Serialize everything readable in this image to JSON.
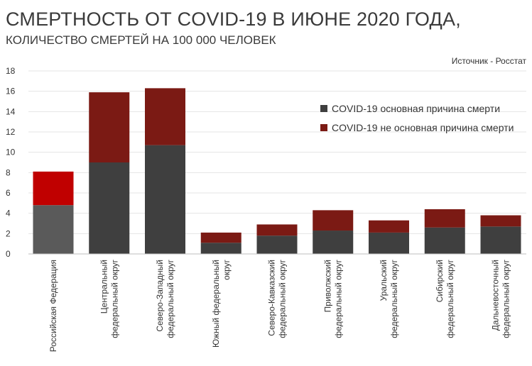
{
  "header": {
    "title": "СМЕРТНОСТЬ ОТ COVID-19 В ИЮНЕ 2020 ГОДА,",
    "subtitle": "КОЛИЧЕСТВО СМЕРТЕЙ НА 100 000 ЧЕЛОВЕК",
    "source": "Источник  - Росстат"
  },
  "colors": {
    "primary_cause": "#3f3f3f",
    "non_primary_cause": "#7b1a14",
    "highlight_primary_cause": "#5a5a5a",
    "highlight_non_primary_cause": "#c00000",
    "grid": "#e4e4e4",
    "axis": "#bfbfbf"
  },
  "chart_data": {
    "type": "bar",
    "stacked": true,
    "title": "СМЕРТНОСТЬ ОТ COVID-19 В ИЮНЕ 2020 ГОДА,",
    "subtitle": "КОЛИЧЕСТВО СМЕРТЕЙ НА 100 000 ЧЕЛОВЕК",
    "xlabel": "",
    "ylabel": "",
    "ylim": [
      0,
      18
    ],
    "yticks": [
      0,
      2,
      4,
      6,
      8,
      10,
      12,
      14,
      16,
      18
    ],
    "grid": true,
    "legend_position": "top-right",
    "highlight_category_index": 0,
    "categories": [
      [
        "Российская Федерация"
      ],
      [
        "Центральный",
        "федеральный округ"
      ],
      [
        "Северо-Западный",
        "федеральный округ"
      ],
      [
        "Южный федеральный",
        "округ"
      ],
      [
        "Северо-Кавказский",
        "федеральный округ"
      ],
      [
        "Приволжский",
        "федеральный округ"
      ],
      [
        "Уральский",
        "федеральный округ"
      ],
      [
        "Сибирский",
        "федеральный округ"
      ],
      [
        "Дальневосточный",
        "федеральный округ"
      ]
    ],
    "series": [
      {
        "name": "COVID-19 основная причина смерти",
        "values": [
          4.8,
          9.0,
          10.7,
          1.1,
          1.8,
          2.3,
          2.1,
          2.6,
          2.7
        ]
      },
      {
        "name": "COVID-19 не основная причина смерти",
        "values": [
          3.3,
          6.9,
          5.6,
          1.0,
          1.1,
          2.0,
          1.2,
          1.8,
          1.1
        ]
      }
    ]
  }
}
